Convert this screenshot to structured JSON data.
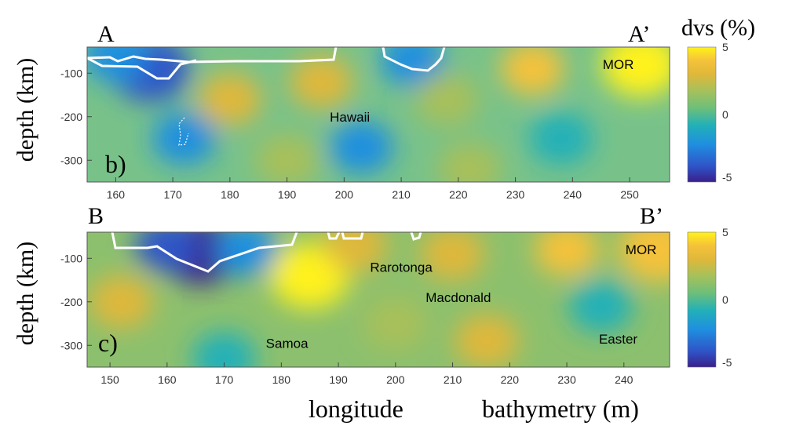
{
  "figure": {
    "section_labels": [
      "A",
      "A’",
      "B",
      "B’"
    ],
    "colorbar_title": "dvs (%)",
    "xlabel": "longitude",
    "extra_label": "bathymetry (m)"
  },
  "colors": {
    "colormap": [
      "#3a1f8c",
      "#2f55c8",
      "#1f8fe0",
      "#22b0b8",
      "#6ebf7a",
      "#a8c05a",
      "#e0b83a",
      "#f5c23a",
      "#fff21a"
    ],
    "contour": "#ffffff",
    "axes": "#333333"
  },
  "chart_data": [
    {
      "type": "heatmap",
      "panel_label": "b)",
      "ylabel": "depth (km)",
      "xlim": [
        155,
        257
      ],
      "ylim": [
        -350,
        -40
      ],
      "xticks": [
        "160",
        "170",
        "180",
        "190",
        "200",
        "210",
        "220",
        "230",
        "240",
        "250"
      ],
      "yticks": [
        "-100",
        "-200",
        "-300"
      ],
      "colorbar": {
        "range": [
          -5,
          5
        ],
        "ticks": [
          "5",
          "0",
          "-5"
        ]
      },
      "annotations": [
        {
          "text": "MOR",
          "x": 248,
          "y": -80
        },
        {
          "text": "Hawaii",
          "x": 201,
          "y": -200
        }
      ],
      "anomalies": [
        {
          "x": 166,
          "y": -90,
          "dvs": -4.0
        },
        {
          "x": 160,
          "y": -60,
          "dvs": -3.0
        },
        {
          "x": 172,
          "y": -250,
          "dvs": -2.5
        },
        {
          "x": 180,
          "y": -160,
          "dvs": 2.8
        },
        {
          "x": 196,
          "y": -120,
          "dvs": 2.6
        },
        {
          "x": 212,
          "y": -70,
          "dvs": -3.0
        },
        {
          "x": 203,
          "y": -270,
          "dvs": -2.5
        },
        {
          "x": 218,
          "y": -160,
          "dvs": 1.5
        },
        {
          "x": 233,
          "y": -90,
          "dvs": 3.5
        },
        {
          "x": 252,
          "y": -80,
          "dvs": 5.0
        },
        {
          "x": 238,
          "y": -250,
          "dvs": -1.5
        },
        {
          "x": 190,
          "y": -300,
          "dvs": 1.0
        },
        {
          "x": 222,
          "y": -320,
          "dvs": 1.5
        }
      ]
    },
    {
      "type": "heatmap",
      "panel_label": "c)",
      "ylabel": "depth (km)",
      "xlim": [
        146,
        248
      ],
      "ylim": [
        -350,
        -40
      ],
      "xticks": [
        "150",
        "160",
        "170",
        "180",
        "190",
        "200",
        "210",
        "220",
        "230",
        "240"
      ],
      "yticks": [
        "-100",
        "-200",
        "-300"
      ],
      "colorbar": {
        "range": [
          -5,
          5
        ],
        "ticks": [
          "5",
          "0",
          "-5"
        ]
      },
      "annotations": [
        {
          "text": "MOR",
          "x": 243,
          "y": -80
        },
        {
          "text": "Rarotonga",
          "x": 201,
          "y": -120
        },
        {
          "text": "Macdonald",
          "x": 211,
          "y": -190
        },
        {
          "text": "Samoa",
          "x": 181,
          "y": -295
        },
        {
          "text": "Easter",
          "x": 239,
          "y": -285
        }
      ],
      "anomalies": [
        {
          "x": 166,
          "y": -85,
          "dvs": -5.0
        },
        {
          "x": 160,
          "y": -70,
          "dvs": -3.5
        },
        {
          "x": 174,
          "y": -80,
          "dvs": -3.0
        },
        {
          "x": 185,
          "y": -140,
          "dvs": 5.0
        },
        {
          "x": 193,
          "y": -70,
          "dvs": 2.0
        },
        {
          "x": 210,
          "y": -90,
          "dvs": 3.0
        },
        {
          "x": 230,
          "y": -80,
          "dvs": 3.5
        },
        {
          "x": 246,
          "y": -80,
          "dvs": 4.0
        },
        {
          "x": 152,
          "y": -200,
          "dvs": 2.0
        },
        {
          "x": 216,
          "y": -290,
          "dvs": 2.6
        },
        {
          "x": 236,
          "y": -210,
          "dvs": -1.5
        },
        {
          "x": 170,
          "y": -330,
          "dvs": -1.5
        },
        {
          "x": 200,
          "y": -250,
          "dvs": 1.2
        }
      ]
    }
  ]
}
